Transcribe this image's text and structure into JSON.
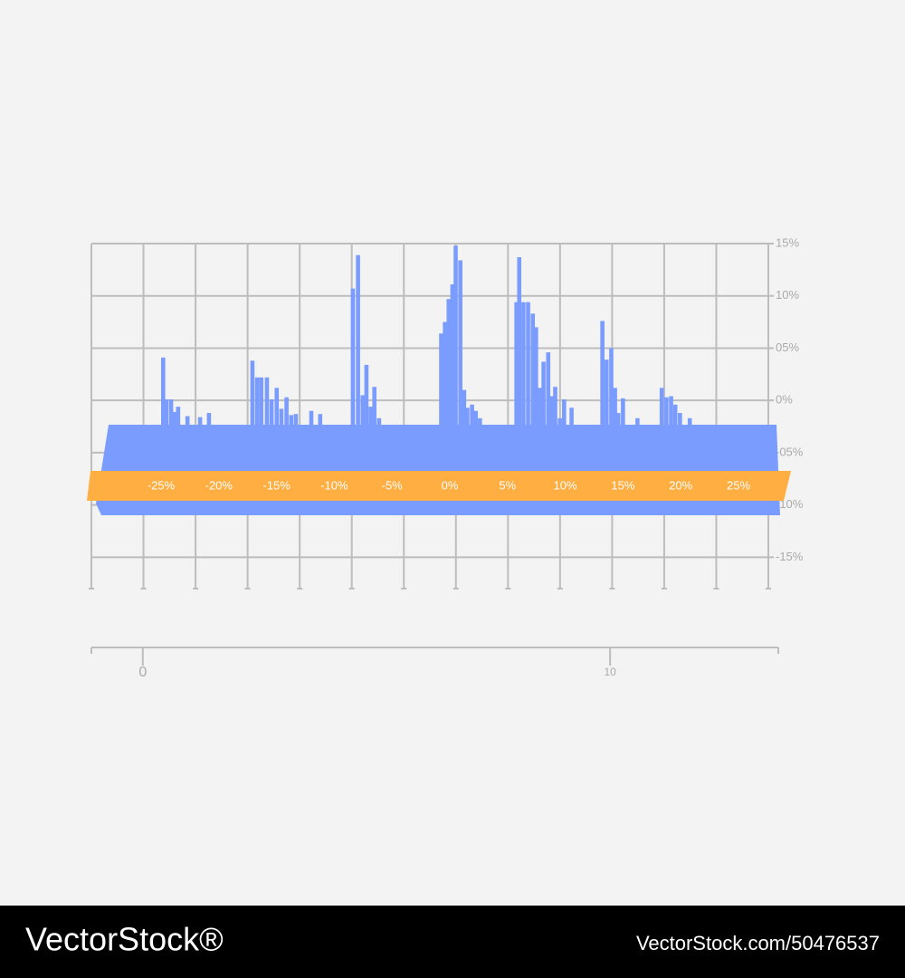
{
  "chart_data": {
    "type": "bar",
    "categories": [
      "-25%",
      "-20%",
      "-15%",
      "-10%",
      "-5%",
      "0%",
      "5%",
      "10%",
      "15%",
      "20%",
      "25%"
    ],
    "series": [
      {
        "color": "#7b9cff",
        "x": [
          0.43,
          0.5,
          0.6,
          0.68,
          0.75,
          0.95,
          1.22,
          1.41,
          2.34,
          2.44,
          2.53,
          2.65,
          2.75,
          2.86,
          2.96,
          3.07,
          3.17,
          3.27,
          3.6,
          3.79,
          4.49,
          4.6,
          4.7,
          4.78,
          4.87,
          4.95,
          5.05,
          6.38,
          6.46,
          6.54,
          6.62,
          6.69,
          6.79,
          6.87,
          6.94,
          7.04,
          7.12,
          7.21,
          7.99,
          8.05,
          8.14,
          8.24,
          8.34,
          8.41,
          8.49,
          8.57,
          8.67,
          8.74,
          8.82,
          8.92,
          9.01,
          9.17,
          9.83,
          9.92,
          10.02,
          10.1,
          10.17,
          10.27,
          10.58,
          11.1,
          11.2,
          11.3,
          11.39,
          11.49,
          11.7
        ],
        "values": [
          4.1,
          0.1,
          0.1,
          -1.1,
          -0.6,
          -1.5,
          -1.6,
          -1.2,
          3.8,
          2.2,
          2.2,
          2.2,
          0.1,
          1.2,
          -0.8,
          0.3,
          -1.4,
          -1.3,
          -1.0,
          -1.3,
          10.7,
          13.9,
          0.5,
          3.4,
          -0.6,
          1.3,
          -1.7,
          6.4,
          7.5,
          9.7,
          11.1,
          14.8,
          13.4,
          1.0,
          -0.7,
          -0.4,
          -1.0,
          -1.7,
          9.4,
          13.7,
          9.4,
          9.4,
          8.3,
          7.0,
          1.2,
          3.7,
          4.6,
          0.4,
          1.3,
          -1.7,
          0.1,
          -0.7,
          7.6,
          3.9,
          5.0,
          1.2,
          -1.2,
          0.2,
          -1.7,
          1.2,
          0.3,
          0.4,
          -0.4,
          -1.2,
          -1.7
        ]
      }
    ],
    "ylim": [
      -18,
      15
    ],
    "yticks": [
      {
        "value": 15,
        "label": "15%"
      },
      {
        "value": 10,
        "label": "10%"
      },
      {
        "value": 5,
        "label": "05%"
      },
      {
        "value": 0,
        "label": "0%"
      },
      {
        "value": -5,
        "label": "-05%"
      },
      {
        "value": -10,
        "label": "-10%"
      },
      {
        "value": -15,
        "label": "-15%"
      }
    ],
    "xlim": [
      -1.1,
      13.6
    ],
    "xticks": [
      0,
      10
    ],
    "grid": true,
    "band_color": "#ffae42"
  },
  "footer": {
    "brand": "VectorStock®",
    "id": "VectorStock.com/50476537"
  }
}
